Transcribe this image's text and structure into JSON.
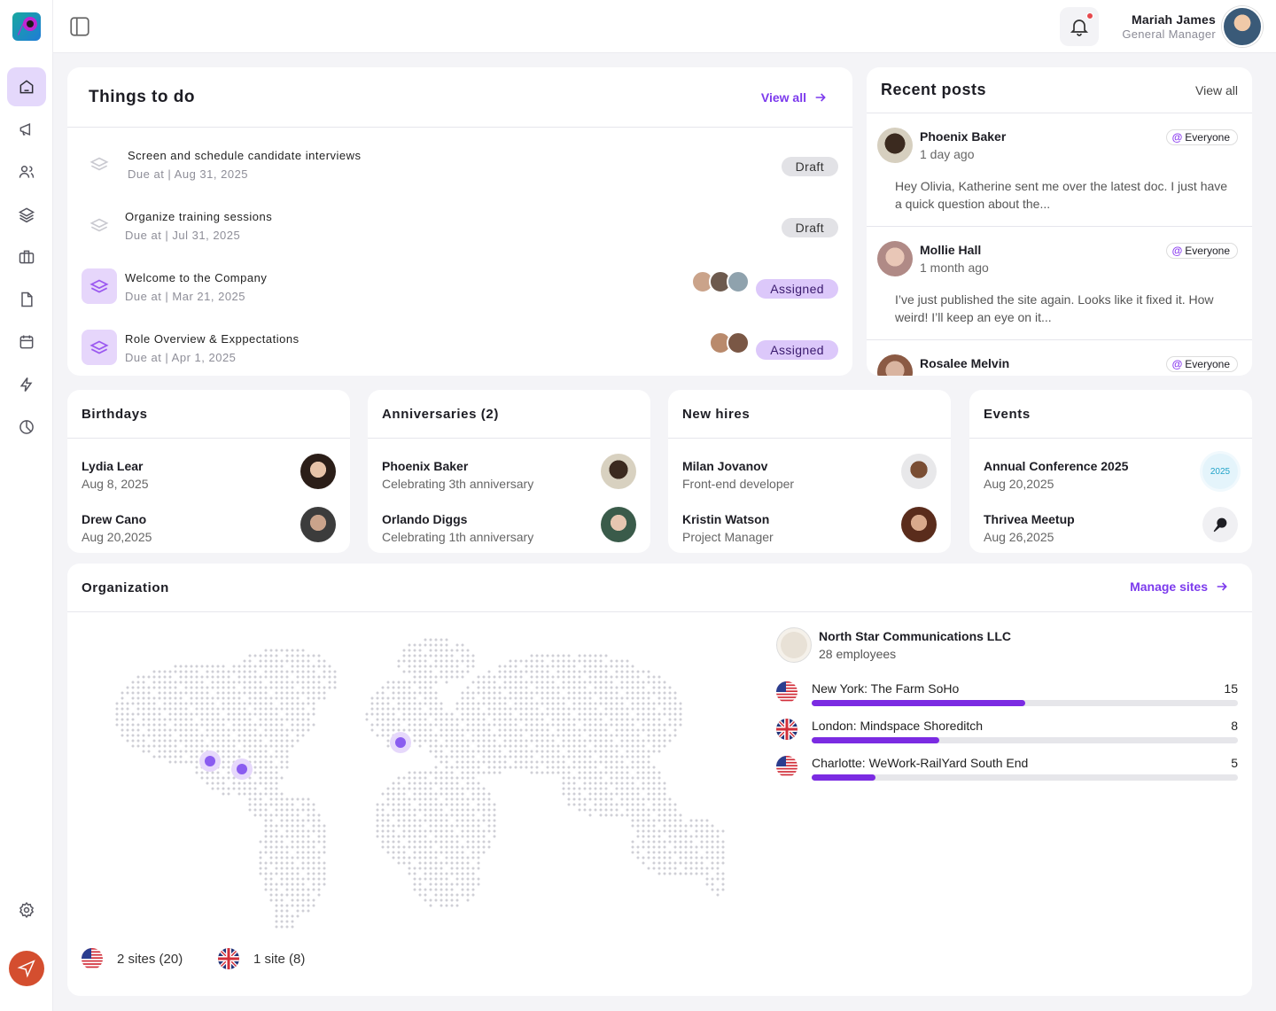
{
  "user": {
    "name": "Mariah James",
    "role": "General Manager"
  },
  "todo": {
    "title": "Things to do",
    "view_all": "View all",
    "items": [
      {
        "title": "Screen and schedule candidate interviews",
        "due": "Due at | Aug 31, 2025",
        "status": "Draft"
      },
      {
        "title": "Organize training sessions",
        "due": "Due at | Jul 31, 2025",
        "status": "Draft"
      },
      {
        "title": "Welcome to the Company",
        "due": "Due at | Mar 21, 2025",
        "status": "Assigned"
      },
      {
        "title": "Role Overview & Exppectations",
        "due": "Due at | Apr 1, 2025",
        "status": "Assigned"
      }
    ]
  },
  "posts": {
    "title": "Recent posts",
    "view_all": "View all",
    "items": [
      {
        "name": "Phoenix Baker",
        "time": "1 day ago",
        "audience": "Everyone",
        "text": "Hey Olivia, Katherine sent me over the latest doc. I just have a quick question about the..."
      },
      {
        "name": "Mollie Hall",
        "time": "1 month ago",
        "audience": "Everyone",
        "text": "I’ve just published the site again. Looks like it fixed it. How weird! I’ll keep an eye on it..."
      },
      {
        "name": "Rosalee Melvin",
        "time": "",
        "audience": "Everyone",
        "text": ""
      }
    ]
  },
  "birthdays": {
    "title": "Birthdays",
    "items": [
      {
        "name": "Lydia Lear",
        "sub": "Aug 8, 2025"
      },
      {
        "name": "Drew Cano",
        "sub": "Aug 20,2025"
      }
    ]
  },
  "anniversaries": {
    "title": "Anniversaries (2)",
    "items": [
      {
        "name": "Phoenix Baker",
        "sub": "Celebrating 3th anniversary"
      },
      {
        "name": "Orlando Diggs",
        "sub": "Celebrating 1th anniversary"
      }
    ]
  },
  "new_hires": {
    "title": "New hires",
    "items": [
      {
        "name": "Milan Jovanov",
        "sub": "Front-end developer"
      },
      {
        "name": "Kristin Watson",
        "sub": "Project Manager"
      }
    ]
  },
  "events": {
    "title": "Events",
    "items": [
      {
        "name": "Annual Conference 2025",
        "sub": "Aug 20,2025",
        "badge": "2025"
      },
      {
        "name": "Thrivea Meetup",
        "sub": "Aug 26,2025"
      }
    ]
  },
  "organization": {
    "title": "Organization",
    "manage": "Manage sites",
    "company": {
      "name": "North Star Communications LLC",
      "employees": "28 employees"
    },
    "sites": [
      {
        "name": "New York: The Farm SoHo",
        "count": "15",
        "flag": "us",
        "fraction": 0.5
      },
      {
        "name": "London: Mindspace Shoreditch",
        "count": "8",
        "flag": "uk",
        "fraction": 0.3
      },
      {
        "name": "Charlotte: WeWork-RailYard South End",
        "count": "5",
        "flag": "us",
        "fraction": 0.15
      }
    ],
    "legend": [
      {
        "flag": "us",
        "label": "2 sites (20)"
      },
      {
        "flag": "uk",
        "label": "1 site (8)"
      }
    ]
  },
  "colors": {
    "accent": "#7c3aed",
    "active_bg": "#e4d8fb",
    "progress": "#7b2be2"
  }
}
